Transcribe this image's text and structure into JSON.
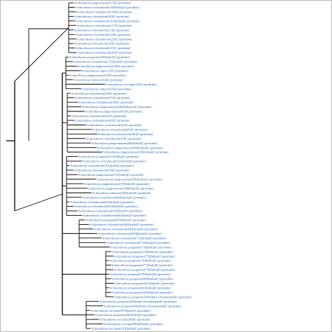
{
  "colors": {
    "label": "#1f5fa8",
    "branch": "#000000",
    "frame": "#b8b8b8"
  },
  "tree": {
    "leaves": [
      "Schizothorax plagiostomus[17][Cyprinidae]",
      "Schizothorax richardsonii[18][India][Cyprinidae]",
      "Schizothorax richardsonii[19][Cyprinidae]",
      "Schizothorax richardsonii[20][Cyprinidae]",
      "Schizothorax richardsonii[16][India][Cyprinidae]",
      "Schizothorax richardsonii[17][Cyprinidae]",
      "Schizothorax richardsonii[21][Cyprinidae]",
      "Schizothorax richardsonii[22][Cyprinidae]",
      "Schizothorax richardsonii[23][Cyprinidae]",
      "Schizothorax richardsonii[24][Cyprinidae]",
      "Schizothorax richardsonii[25][Cyprinidae]",
      "Schizothorax richardsonii[26][Cyprinidae]",
      "Schizothorax progastus[28][India][Cyprinidae]",
      "Schizothorax richardsonii[27][India][Cyprinidae]",
      "Schizothorax plagiostomus[30][Cyprinidae]",
      "Schizothorax niger[31][Cyprinidae]",
      "Schizothorax plagiostomus[32][Cyprinidae]",
      "Schizothorax labiatus[33][Cyprinidae]",
      "Schizothorax esocinus[34][Cyprinidae]",
      "Schizothorax labiatus[35][Cyprinidae]",
      "Schizothorax richardsonii[36][Cyprinidae]",
      "Schizothorax richardsonii[37][Cyprinidae]",
      "Schizothorax richardsonii[38][Cyprinidae]",
      "Schizothorax plagiostomus[39][Pakistan][Cyprinidae]",
      "Schizothorax plagiostomus[41][Cyprinidae]",
      "Schizothorax richardsonii[42][Cyprinidae]",
      "Schizothorax richardsonii[43][Cyprinidae]",
      "Schizothorax richardsonii[44][Cyprinidae]",
      "Schizothorax richardsonii[45][Cyprinidae]",
      "Schizothorax richardsonii[46][Cyprinidae]",
      "Schizothorax richardsonii[47][Cyprinidae]",
      "Schizothorax plagiostomus[48][India][Cyprinidae]",
      "Schizothorax plagiostomus[49][India][Cyprinidae]",
      "Schizothorax plagiostomus[50][India][Cyprinidae]",
      "Schizothorax progastus[51][India][Cyprinidae]",
      "Schizothorax richardsonii[52][India][Cyprinidae]",
      "Schizothorax richardsonii[53][India][Cyprinidae]",
      "Schizothorax richardsonii[54][Cyprinidae]",
      "Schizothorax plagiostomus[55][India][Cyprinidae]",
      "Schizothorax plagiostomus[56][India][Cyprinidae]",
      "Schizothorax plagiostomus[57][India][Cyprinidae]",
      "Schizothorax plagiostomus[58][India][Cyprinidae]",
      "Schizothorax labiatus[59][India][Cyprinidae]",
      "Schizothorax richardsonii[60][India][Cyprinidae]",
      "Schizothorax richardsonii[61][India][Cyprinidae]",
      "Schizothorax richardsonii[62][India][Cyprinidae]",
      "Schizothorax richardsonii[63][India][Cyprinidae]",
      "Schizothorax richardsonii[64][India][Cyprinidae]",
      "Schizothorax progastus[65][India][Cyprinidae]",
      "Schizothorax richardsonii[66][India][Cyprinidae]",
      "Schizothorax richardsonii[68][India][Cyprinidae]",
      "Schizothorax richardsonii[69][India][Cyprinidae]",
      "Schizothorax richardsonii[71][India][Cyprinidae]",
      "Schizothorax richardsonii[72][India][Cyprinidae]",
      "Schizothorax progastus[73][India][Cyprinidae]",
      "Schizothorax progastus[74][India][Cyprinidae]",
      "Schizothorax progastus[75][India][Cyprinidae]",
      "Schizothorax progastus[76][India][Cyprinidae]",
      "Schizothorax progastus[77][India][Cyprinidae]",
      "Schizothorax progastus[78][India][Cyprinidae]",
      "Schizothorax progastus[79][India][Cyprinidae]",
      "Schizothorax progastus[80][India][Cyprinidae]",
      "Schizothorax progastus[81][India][Cyprinidae]",
      "Schizothorax progastus[82][India][Cyprinidae]",
      "Schizothorax progastus[83][India][Cyprinidae]",
      "Schizothorax progastus[84][India Uttarakhand][Cyprinidae]",
      "Schizothorax progastus[85][India Uttarakhand][Cyprinidae]",
      "Schizothorax progastus[86][India Uttarakhand][Cyprinidae]",
      "Schizothorax esocinus[87][India][Cyprinidae]",
      "Schizothorax progastus[88][India][Cyprinidae]",
      "Schizothorax esocinus[89][Cyprinidae]",
      "Schizothorax esocinus[90][India][Cyprinidae]",
      "Schizothorax esocinus[91][India][Cyprinidae]"
    ]
  }
}
